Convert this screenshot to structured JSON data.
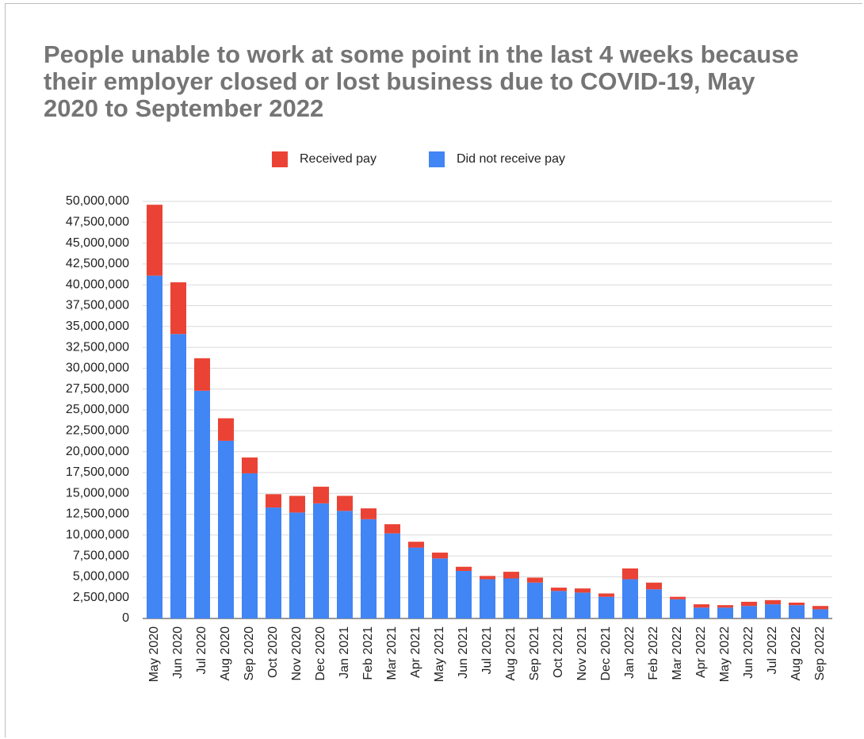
{
  "chart_data": {
    "type": "stacked_bar",
    "title": "People unable to work at some point in the last 4 weeks because their employer closed or lost business due to COVID-19, May 2020 to September 2022",
    "categories": [
      "May 2020",
      "Jun 2020",
      "Jul 2020",
      "Aug 2020",
      "Sep 2020",
      "Oct 2020",
      "Nov 2020",
      "Dec 2020",
      "Jan 2021",
      "Feb 2021",
      "Mar 2021",
      "Apr 2021",
      "May 2021",
      "Jun 2021",
      "Jul 2021",
      "Aug 2021",
      "Sep 2021",
      "Oct 2021",
      "Nov 2021",
      "Dec 2021",
      "Jan 2022",
      "Feb 2022",
      "Mar 2022",
      "Apr 2022",
      "May 2022",
      "Jun 2022",
      "Jul 2022",
      "Aug 2022",
      "Sep 2022"
    ],
    "series": [
      {
        "name": "Received pay",
        "color": "#ea4335",
        "values": [
          8500000,
          6200000,
          3900000,
          2700000,
          1900000,
          1600000,
          2000000,
          2000000,
          1800000,
          1300000,
          1100000,
          700000,
          700000,
          500000,
          400000,
          800000,
          600000,
          400000,
          500000,
          400000,
          1300000,
          800000,
          300000,
          400000,
          300000,
          500000,
          500000,
          300000,
          400000
        ]
      },
      {
        "name": "Did not receive pay",
        "color": "#4285f4",
        "values": [
          41100000,
          34100000,
          27300000,
          21300000,
          17400000,
          13300000,
          12700000,
          13800000,
          12900000,
          11900000,
          10200000,
          8500000,
          7200000,
          5700000,
          4700000,
          4800000,
          4300000,
          3300000,
          3100000,
          2600000,
          4700000,
          3500000,
          2300000,
          1300000,
          1300000,
          1500000,
          1700000,
          1600000,
          1100000
        ]
      }
    ],
    "ylim": [
      0,
      50000000
    ],
    "yticks": [
      0,
      {
        "value": 2500000,
        "label": "2,500,000"
      },
      {
        "value": 5000000,
        "label": "5,000,000"
      },
      {
        "value": 7500000,
        "label": "7,500,000"
      },
      {
        "value": 10000000,
        "label": "10,000,000"
      },
      {
        "value": 12500000,
        "label": "12,500,000"
      },
      {
        "value": 15000000,
        "label": "15,000,000"
      },
      {
        "value": 17500000,
        "label": "17,500,000"
      },
      {
        "value": 20000000,
        "label": "20,000,000"
      },
      {
        "value": 22500000,
        "label": "22,500,000"
      },
      {
        "value": 25000000,
        "label": "25,000,000"
      },
      {
        "value": 27500000,
        "label": "27,500,000"
      },
      {
        "value": 30000000,
        "label": "30,000,000"
      },
      {
        "value": 32500000,
        "label": "32,500,000"
      },
      {
        "value": 35000000,
        "label": "35,000,000"
      },
      {
        "value": 37500000,
        "label": "37,500,000"
      },
      {
        "value": 40000000,
        "label": "40,000,000"
      },
      {
        "value": 42500000,
        "label": "42,500,000"
      },
      {
        "value": 45000000,
        "label": "45,000,000"
      },
      {
        "value": 47500000,
        "label": "47,500,000"
      },
      {
        "value": 50000000,
        "label": "50,000,000"
      }
    ],
    "grid": true,
    "legend": "top"
  }
}
